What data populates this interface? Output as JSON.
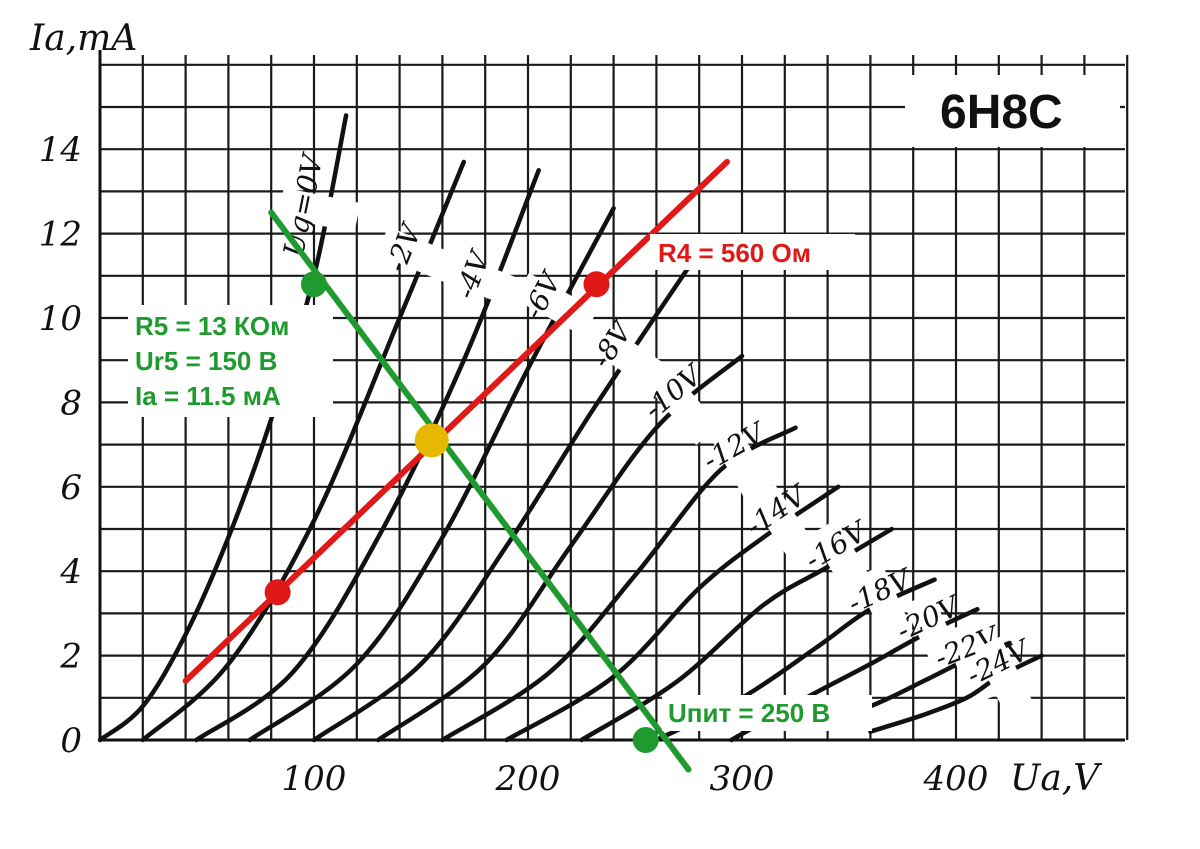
{
  "chart_data": {
    "type": "line",
    "title": "6H8C",
    "xlabel": "Ua,V",
    "ylabel": "Ia,mA",
    "xlim": [
      0,
      420
    ],
    "ylim": [
      0,
      15
    ],
    "x_ticks": [
      "100",
      "200",
      "300",
      "400"
    ],
    "y_ticks": [
      "0",
      "2",
      "4",
      "6",
      "8",
      "10",
      "12",
      "14"
    ],
    "grid": true,
    "series": [
      {
        "name": "Ug=0V",
        "x": [
          0,
          20,
          40,
          60,
          80,
          100,
          115
        ],
        "y": [
          0,
          0.8,
          2.5,
          4.8,
          7.6,
          11.0,
          14.8
        ]
      },
      {
        "name": "-2V",
        "x": [
          20,
          60,
          100,
          140,
          170
        ],
        "y": [
          0,
          1.8,
          5.2,
          10.0,
          13.7
        ]
      },
      {
        "name": "-4V",
        "x": [
          45,
          90,
          130,
          170,
          205
        ],
        "y": [
          0,
          1.6,
          4.8,
          9.0,
          13.5
        ]
      },
      {
        "name": "-6V",
        "x": [
          70,
          120,
          160,
          200,
          240
        ],
        "y": [
          0,
          1.8,
          4.8,
          8.8,
          12.6
        ]
      },
      {
        "name": "-8V",
        "x": [
          100,
          150,
          190,
          230,
          275
        ],
        "y": [
          0,
          1.8,
          4.6,
          7.8,
          11.2
        ]
      },
      {
        "name": "-10V",
        "x": [
          130,
          180,
          220,
          260,
          300
        ],
        "y": [
          0,
          1.8,
          4.6,
          7.4,
          9.1
        ]
      },
      {
        "name": "-12V",
        "x": [
          160,
          210,
          250,
          290,
          325
        ],
        "y": [
          0,
          1.6,
          3.9,
          6.4,
          7.4
        ]
      },
      {
        "name": "-14V",
        "x": [
          190,
          240,
          280,
          310,
          345
        ],
        "y": [
          0,
          1.5,
          3.6,
          4.8,
          6.0
        ]
      },
      {
        "name": "-16V",
        "x": [
          225,
          270,
          310,
          340,
          370
        ],
        "y": [
          0,
          1.4,
          3.2,
          4.1,
          5.0
        ]
      },
      {
        "name": "-18V",
        "x": [
          260,
          300,
          335,
          360,
          390
        ],
        "y": [
          0,
          1.0,
          2.2,
          3.1,
          3.8
        ]
      },
      {
        "name": "-20V",
        "x": [
          295,
          330,
          360,
          385,
          410
        ],
        "y": [
          0,
          1.0,
          1.8,
          2.5,
          3.1
        ]
      },
      {
        "name": "-22V",
        "x": [
          330,
          360,
          385,
          405,
          425
        ],
        "y": [
          0.3,
          0.8,
          1.4,
          1.9,
          2.3
        ]
      },
      {
        "name": "-24V",
        "x": [
          360,
          385,
          405,
          420,
          440
        ],
        "y": [
          0.2,
          0.6,
          1.0,
          1.5,
          2.0
        ]
      }
    ],
    "load_lines": [
      {
        "label": "R5 = 13 КОм",
        "color": "#1f9a2e",
        "x": [
          80,
          275
        ],
        "y": [
          12.5,
          -0.7
        ],
        "points": [
          {
            "x": 100,
            "y": 10.8
          },
          {
            "x": 255,
            "y": 0
          }
        ]
      },
      {
        "label": "R4 = 560 Ом",
        "color": "#e01818",
        "x": [
          40,
          293
        ],
        "y": [
          1.4,
          13.7
        ],
        "points": [
          {
            "x": 83,
            "y": 3.5
          },
          {
            "x": 232,
            "y": 10.8
          }
        ]
      }
    ],
    "operating_point": {
      "x": 155,
      "y": 7.1,
      "color": "#e6b800"
    },
    "annotations": {
      "r5": "R5 = 13 КОм",
      "ur5": "Ur5 = 150 В",
      "ia": "Ia = 11.5 мА",
      "r4": "R4 = 560 Ом",
      "upit": "Uпит = 250 В"
    }
  }
}
